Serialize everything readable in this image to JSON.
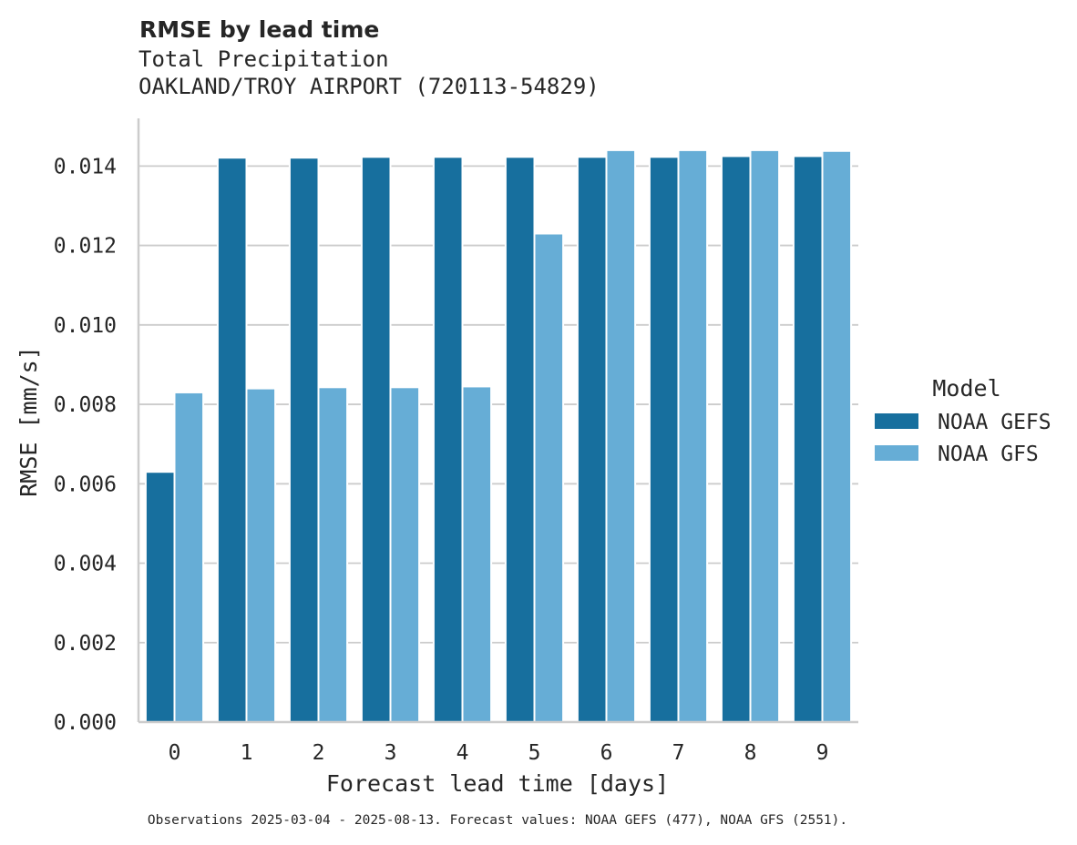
{
  "chart_data": {
    "type": "bar",
    "title": "RMSE by lead time",
    "subtitle_lines": [
      "Total Precipitation",
      "OAKLAND/TROY AIRPORT (720113-54829)"
    ],
    "xlabel": "Forecast lead time [days]",
    "ylabel": "RMSE [mm/s]",
    "categories": [
      "0",
      "1",
      "2",
      "3",
      "4",
      "5",
      "6",
      "7",
      "8",
      "9"
    ],
    "ylim": [
      0,
      0.0152
    ],
    "yticks": [
      0.0,
      0.002,
      0.004,
      0.006,
      0.008,
      0.01,
      0.012,
      0.014
    ],
    "ytick_labels": [
      "0.000",
      "0.002",
      "0.004",
      "0.006",
      "0.008",
      "0.010",
      "0.012",
      "0.014"
    ],
    "grid": "horizontal",
    "legend": {
      "title": "Model",
      "position": "right"
    },
    "series": [
      {
        "name": "NOAA GEFS",
        "color": "#176f9e",
        "values": [
          0.0063,
          0.01421,
          0.01421,
          0.01423,
          0.01423,
          0.01423,
          0.01423,
          0.01423,
          0.01425,
          0.01425
        ]
      },
      {
        "name": "NOAA GFS",
        "color": "#66add6",
        "values": [
          0.0083,
          0.0084,
          0.00843,
          0.00843,
          0.00845,
          0.0123,
          0.0144,
          0.0144,
          0.0144,
          0.01438
        ]
      }
    ],
    "footnote": "Observations 2025-03-04 - 2025-08-13. Forecast values: NOAA GEFS (477), NOAA GFS (2551)."
  }
}
